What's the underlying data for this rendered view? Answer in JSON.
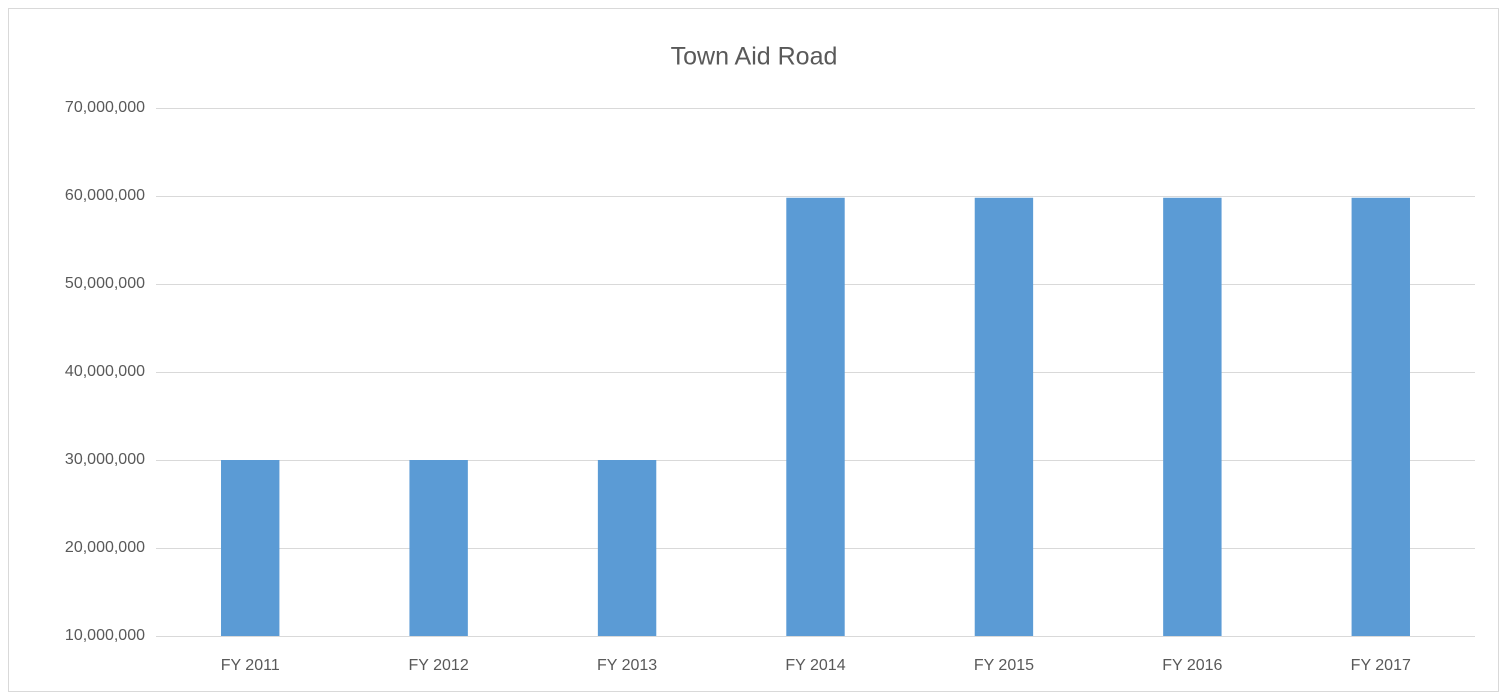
{
  "chart_data": {
    "type": "bar",
    "title": "Town Aid Road",
    "categories": [
      "FY 2011",
      "FY 2012",
      "FY 2013",
      "FY 2014",
      "FY 2015",
      "FY 2016",
      "FY 2017"
    ],
    "values": [
      30000000,
      30000000,
      30000000,
      59800000,
      59800000,
      59800000,
      59800000
    ],
    "color": "#5b9bd5",
    "ylim": [
      10000000,
      70000000
    ],
    "yticks": [
      {
        "value": 10000000,
        "label": "10,000,000"
      },
      {
        "value": 20000000,
        "label": "20,000,000"
      },
      {
        "value": 30000000,
        "label": "30,000,000"
      },
      {
        "value": 40000000,
        "label": "40,000,000"
      },
      {
        "value": 50000000,
        "label": "50,000,000"
      },
      {
        "value": 60000000,
        "label": "60,000,000"
      },
      {
        "value": 70000000,
        "label": "70,000,000"
      }
    ],
    "grid": true
  }
}
